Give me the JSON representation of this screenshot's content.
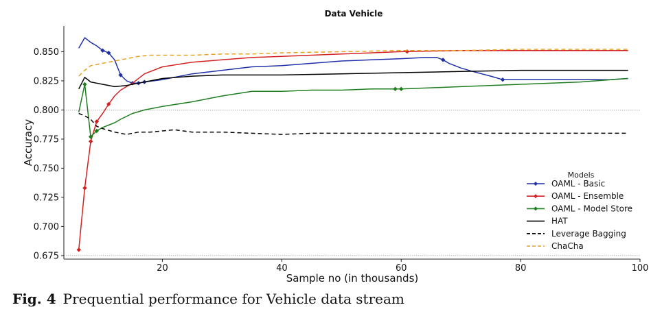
{
  "chart_data": {
    "type": "line",
    "title": "Data Vehicle",
    "xlabel": "Sample no (in thousands)",
    "ylabel": "Accuracy",
    "xlim": [
      3.5,
      100
    ],
    "ylim": [
      0.672,
      0.872
    ],
    "xticks": [
      20,
      40,
      60,
      80,
      100
    ],
    "yticks": [
      0.675,
      0.7,
      0.725,
      0.75,
      0.775,
      0.8,
      0.825,
      0.85
    ],
    "ytick_labels": [
      "0.675",
      "0.700",
      "0.725",
      "0.750",
      "0.775",
      "0.800",
      "0.825",
      "0.850"
    ],
    "reference_lines": [
      0.8,
      0.675
    ],
    "legend": {
      "title": "Models",
      "position": "bottom-right"
    },
    "series": [
      {
        "name": "OAML - Basic",
        "color": "#1f2fa8",
        "dash": "solid",
        "x": [
          6,
          7,
          8,
          9,
          10,
          11,
          12,
          13,
          14,
          15,
          16,
          17,
          20,
          25,
          30,
          35,
          40,
          45,
          50,
          55,
          60,
          64,
          66,
          67,
          68,
          70,
          72,
          75,
          77,
          80,
          85,
          90,
          95,
          98
        ],
        "y": [
          0.853,
          0.862,
          0.858,
          0.855,
          0.851,
          0.849,
          0.843,
          0.83,
          0.825,
          0.823,
          0.823,
          0.824,
          0.826,
          0.831,
          0.834,
          0.837,
          0.838,
          0.84,
          0.842,
          0.843,
          0.844,
          0.845,
          0.845,
          0.843,
          0.84,
          0.836,
          0.833,
          0.829,
          0.826,
          0.826,
          0.826,
          0.826,
          0.826,
          0.827
        ],
        "markers_x": [
          10,
          11,
          13,
          15,
          16,
          17,
          67,
          77
        ]
      },
      {
        "name": "OAML - Ensemble",
        "color": "#d42020",
        "dash": "solid",
        "x": [
          6,
          7,
          8,
          9,
          10,
          11,
          12,
          13,
          14,
          15,
          17,
          20,
          25,
          30,
          35,
          40,
          50,
          60,
          70,
          80,
          90,
          98
        ],
        "y": [
          0.68,
          0.733,
          0.773,
          0.79,
          0.797,
          0.805,
          0.812,
          0.817,
          0.82,
          0.823,
          0.831,
          0.837,
          0.841,
          0.843,
          0.845,
          0.846,
          0.848,
          0.85,
          0.851,
          0.851,
          0.851,
          0.851
        ],
        "markers_x": [
          6,
          7,
          8,
          9,
          11,
          61
        ]
      },
      {
        "name": "OAML - Model Store",
        "color": "#1e7d1e",
        "dash": "solid",
        "x": [
          6,
          7,
          8,
          9,
          10,
          11,
          12,
          13,
          15,
          17,
          20,
          25,
          30,
          35,
          40,
          45,
          50,
          55,
          60,
          70,
          80,
          90,
          98
        ],
        "y": [
          0.798,
          0.822,
          0.777,
          0.782,
          0.785,
          0.787,
          0.789,
          0.792,
          0.797,
          0.8,
          0.803,
          0.807,
          0.812,
          0.816,
          0.816,
          0.817,
          0.817,
          0.818,
          0.818,
          0.82,
          0.822,
          0.824,
          0.827
        ],
        "markers_x": [
          7,
          8,
          9,
          59,
          60
        ]
      },
      {
        "name": "HAT",
        "color": "#000000",
        "dash": "solid",
        "x": [
          6,
          7,
          8,
          9,
          10,
          12,
          14,
          16,
          18,
          20,
          25,
          30,
          35,
          40,
          50,
          60,
          70,
          80,
          90,
          98
        ],
        "y": [
          0.818,
          0.828,
          0.824,
          0.823,
          0.822,
          0.82,
          0.821,
          0.823,
          0.825,
          0.827,
          0.829,
          0.83,
          0.83,
          0.83,
          0.831,
          0.832,
          0.833,
          0.834,
          0.834,
          0.834
        ],
        "markers_x": []
      },
      {
        "name": "Leverage Bagging",
        "color": "#000000",
        "dash": "dashed",
        "x": [
          6,
          7,
          8,
          9,
          10,
          12,
          14,
          16,
          18,
          20,
          22,
          25,
          30,
          35,
          40,
          45,
          50,
          55,
          60,
          70,
          80,
          90,
          98
        ],
        "y": [
          0.797,
          0.795,
          0.792,
          0.786,
          0.784,
          0.781,
          0.779,
          0.781,
          0.781,
          0.782,
          0.783,
          0.781,
          0.781,
          0.78,
          0.779,
          0.78,
          0.78,
          0.78,
          0.78,
          0.78,
          0.78,
          0.78,
          0.78
        ],
        "markers_x": []
      },
      {
        "name": "ChaCha",
        "color": "#e8a020",
        "dash": "dashed",
        "x": [
          6,
          7,
          8,
          10,
          12,
          14,
          16,
          18,
          20,
          25,
          30,
          35,
          40,
          50,
          60,
          70,
          80,
          90,
          98
        ],
        "y": [
          0.829,
          0.834,
          0.838,
          0.84,
          0.842,
          0.844,
          0.846,
          0.847,
          0.847,
          0.847,
          0.848,
          0.848,
          0.849,
          0.85,
          0.851,
          0.851,
          0.852,
          0.852,
          0.852
        ],
        "markers_x": []
      }
    ]
  },
  "caption": {
    "figure_label": "Fig. 4",
    "text": "Prequential performance for Vehicle data stream"
  }
}
